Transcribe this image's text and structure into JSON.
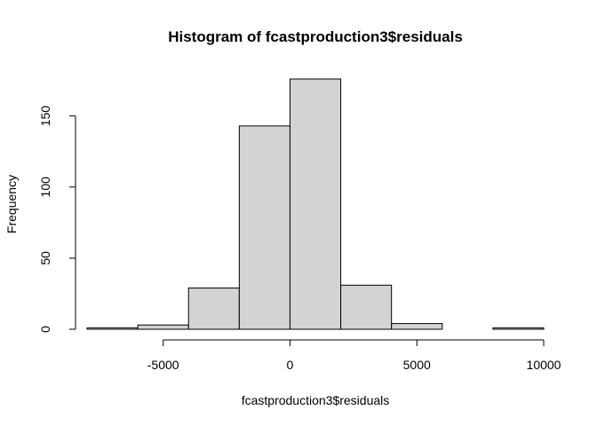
{
  "chart_data": {
    "type": "histogram",
    "title": "Histogram of fcastproduction3$residuals",
    "xlabel": "fcastproduction3$residuals",
    "ylabel": "Frequency",
    "bin_edges": [
      -8000,
      -6000,
      -4000,
      -2000,
      0,
      2000,
      4000,
      6000,
      8000,
      10000
    ],
    "counts": [
      1,
      3,
      29,
      143,
      176,
      31,
      4,
      0,
      1
    ],
    "bar_fill": "#d3d3d3",
    "bar_stroke": "#000000",
    "x_ticks": [
      -5000,
      0,
      5000,
      10000
    ],
    "x_tick_labels": [
      "-5000",
      "0",
      "5000",
      "10000"
    ],
    "y_ticks": [
      0,
      50,
      100,
      150
    ],
    "y_tick_labels": [
      "0",
      "50",
      "100",
      "150"
    ],
    "xlim": [
      -8000,
      10000
    ],
    "ylim": [
      0,
      176
    ],
    "grid": false,
    "legend": "none"
  }
}
